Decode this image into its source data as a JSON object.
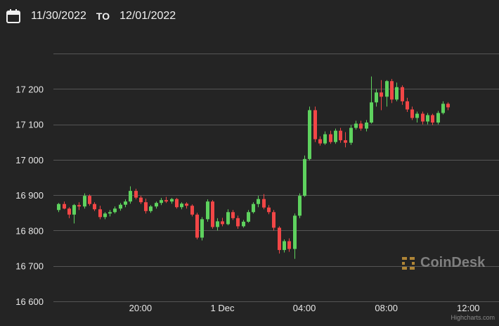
{
  "header": {
    "from_date": "11/30/2022",
    "to_label": "TO",
    "to_date": "12/01/2022",
    "icon": "calendar-icon"
  },
  "watermark": {
    "text": "CoinDesk",
    "icon": "coindesk-logo-icon"
  },
  "credits": "Highcharts.com",
  "colors": {
    "background": "#242424",
    "up": "#5ed25e",
    "down": "#f24646",
    "grid": "#555555"
  },
  "chart_data": {
    "type": "candlestick",
    "title": "",
    "xlabel": "",
    "ylabel": "",
    "ylim": [
      16600,
      17300
    ],
    "yticks": [
      16600,
      16700,
      16800,
      16900,
      17000,
      17100,
      17200
    ],
    "ytick_labels": [
      "16 600",
      "16 700",
      "16 800",
      "16 900",
      "17 000",
      "17 100",
      "17 200"
    ],
    "xlim": [
      15.75,
      37.5
    ],
    "xticks": [
      20,
      24,
      28,
      32,
      36
    ],
    "xtick_labels": [
      "20:00",
      "1 Dec",
      "04:00",
      "08:00",
      "12:00"
    ],
    "x_unit": "hours since 11/30/2022 00:00",
    "grid": true,
    "series": [
      {
        "ohlc": [
          [
            16,
            16858,
            16878,
            16852,
            16875
          ],
          [
            16.25,
            16875,
            16882,
            16860,
            16862
          ],
          [
            16.5,
            16862,
            16866,
            16835,
            16845
          ],
          [
            16.75,
            16845,
            16875,
            16820,
            16872
          ],
          [
            17,
            16872,
            16880,
            16858,
            16868
          ],
          [
            17.25,
            16868,
            16905,
            16862,
            16898
          ],
          [
            17.5,
            16898,
            16902,
            16870,
            16875
          ],
          [
            17.75,
            16875,
            16880,
            16855,
            16860
          ],
          [
            18,
            16860,
            16870,
            16832,
            16838
          ],
          [
            18.25,
            16838,
            16852,
            16832,
            16848
          ],
          [
            18.5,
            16848,
            16858,
            16840,
            16852
          ],
          [
            18.75,
            16852,
            16868,
            16848,
            16862
          ],
          [
            19,
            16862,
            16878,
            16856,
            16873
          ],
          [
            19.25,
            16873,
            16888,
            16866,
            16882
          ],
          [
            19.5,
            16882,
            16925,
            16876,
            16912
          ],
          [
            19.75,
            16912,
            16918,
            16888,
            16893
          ],
          [
            20,
            16893,
            16898,
            16875,
            16880
          ],
          [
            20.25,
            16880,
            16890,
            16848,
            16855
          ],
          [
            20.5,
            16855,
            16872,
            16850,
            16868
          ],
          [
            20.75,
            16868,
            16882,
            16862,
            16878
          ],
          [
            21,
            16878,
            16892,
            16872,
            16886
          ],
          [
            21.25,
            16886,
            16895,
            16878,
            16882
          ],
          [
            21.5,
            16882,
            16892,
            16876,
            16889
          ],
          [
            21.75,
            16889,
            16892,
            16862,
            16866
          ],
          [
            22,
            16866,
            16880,
            16860,
            16876
          ],
          [
            22.25,
            16876,
            16880,
            16862,
            16870
          ],
          [
            22.5,
            16870,
            16874,
            16840,
            16845
          ],
          [
            22.75,
            16845,
            16850,
            16775,
            16780
          ],
          [
            23,
            16780,
            16838,
            16772,
            16832
          ],
          [
            23.25,
            16832,
            16888,
            16825,
            16882
          ],
          [
            23.5,
            16882,
            16886,
            16805,
            16810
          ],
          [
            23.75,
            16810,
            16835,
            16800,
            16826
          ],
          [
            24,
            16826,
            16836,
            16812,
            16818
          ],
          [
            24.25,
            16818,
            16860,
            16815,
            16852
          ],
          [
            24.5,
            16852,
            16858,
            16830,
            16835
          ],
          [
            24.75,
            16835,
            16842,
            16805,
            16812
          ],
          [
            25,
            16812,
            16830,
            16808,
            16825
          ],
          [
            25.25,
            16825,
            16858,
            16822,
            16852
          ],
          [
            25.5,
            16852,
            16880,
            16848,
            16875
          ],
          [
            25.75,
            16875,
            16898,
            16866,
            16889
          ],
          [
            26,
            16889,
            16903,
            16860,
            16865
          ],
          [
            26.25,
            16865,
            16872,
            16846,
            16852
          ],
          [
            26.5,
            16852,
            16858,
            16800,
            16808
          ],
          [
            26.75,
            16808,
            16812,
            16735,
            16745
          ],
          [
            27,
            16745,
            16775,
            16738,
            16770
          ],
          [
            27.25,
            16770,
            16778,
            16740,
            16748
          ],
          [
            27.5,
            16748,
            16848,
            16720,
            16842
          ],
          [
            27.75,
            16842,
            16905,
            16835,
            16898
          ],
          [
            28,
            16898,
            17012,
            16895,
            17002
          ],
          [
            28.25,
            17002,
            17150,
            16998,
            17140
          ],
          [
            28.5,
            17140,
            17150,
            17050,
            17058
          ],
          [
            28.75,
            17058,
            17066,
            17040,
            17046
          ],
          [
            29,
            17046,
            17080,
            17042,
            17072
          ],
          [
            29.25,
            17072,
            17082,
            17045,
            17050
          ],
          [
            29.5,
            17050,
            17088,
            17045,
            17082
          ],
          [
            29.75,
            17082,
            17090,
            17048,
            17055
          ],
          [
            30,
            17055,
            17078,
            17035,
            17048
          ],
          [
            30.25,
            17048,
            17098,
            17042,
            17090
          ],
          [
            30.5,
            17090,
            17110,
            17085,
            17102
          ],
          [
            30.75,
            17102,
            17110,
            17082,
            17088
          ],
          [
            31,
            17088,
            17112,
            17080,
            17105
          ],
          [
            31.25,
            17105,
            17235,
            17102,
            17162
          ],
          [
            31.5,
            17162,
            17200,
            17150,
            17190
          ],
          [
            31.75,
            17190,
            17225,
            17140,
            17178
          ],
          [
            32,
            17178,
            17225,
            17150,
            17222
          ],
          [
            32.25,
            17222,
            17228,
            17160,
            17170
          ],
          [
            32.5,
            17170,
            17218,
            17165,
            17205
          ],
          [
            32.75,
            17205,
            17210,
            17155,
            17165
          ],
          [
            33,
            17165,
            17175,
            17135,
            17142
          ],
          [
            33.25,
            17142,
            17150,
            17112,
            17118
          ],
          [
            33.5,
            17118,
            17136,
            17105,
            17130
          ],
          [
            33.75,
            17130,
            17136,
            17100,
            17108
          ],
          [
            34,
            17108,
            17132,
            17100,
            17126
          ],
          [
            34.25,
            17126,
            17130,
            17098,
            17105
          ],
          [
            34.5,
            17105,
            17138,
            17100,
            17132
          ],
          [
            34.75,
            17132,
            17165,
            17128,
            17158
          ],
          [
            35,
            17158,
            17162,
            17140,
            17148
          ]
        ]
      }
    ]
  }
}
